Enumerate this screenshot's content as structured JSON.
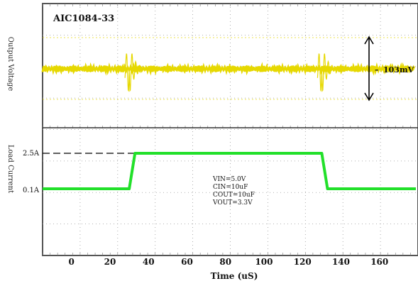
{
  "chart_data": {
    "type": "line",
    "title": "AIC1084-33",
    "xlabel": "Time (uS)",
    "x_ticks": [
      0,
      20,
      40,
      60,
      80,
      100,
      120,
      140,
      160
    ],
    "xlim": [
      -15,
      180
    ],
    "grid": true,
    "panels": [
      {
        "name": "output_voltage",
        "ylabel": "Output Voltage",
        "annotation": "103mV",
        "color": "#e6d800",
        "transients_at_x": [
          30,
          130
        ],
        "ripple_peak_to_peak_mV": 103
      },
      {
        "name": "load_current",
        "ylabel": "Load Current",
        "color": "#22e02a",
        "levels": [
          {
            "label": "0.1A",
            "value": 0.1
          },
          {
            "label": "2.5A",
            "value": 2.5
          }
        ],
        "x": [
          -15,
          30,
          33,
          130,
          133,
          180
        ],
        "y": [
          0.1,
          0.1,
          2.5,
          2.5,
          0.1,
          0.1
        ],
        "annotations": [
          "VIN=5.0V",
          "CIN=10uF",
          "COUT=10uF",
          "VOUT=3.3V"
        ]
      }
    ]
  }
}
